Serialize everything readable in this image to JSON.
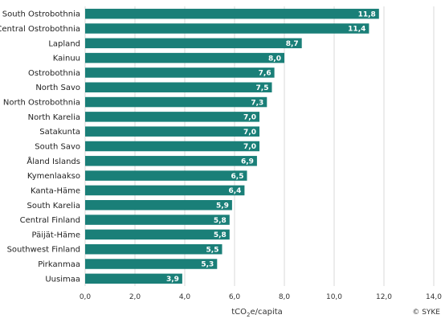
{
  "chart_data": {
    "type": "bar",
    "orientation": "horizontal",
    "categories": [
      "South Ostrobothnia",
      "Central Ostrobothnia",
      "Lapland",
      "Kainuu",
      "Ostrobothnia",
      "North Savo",
      "North Ostrobothnia",
      "North Karelia",
      "Satakunta",
      "South Savo",
      "Åland Islands",
      "Kymenlaakso",
      "Kanta-Häme",
      "South Karelia",
      "Central Finland",
      "Päijät-Häme",
      "Southwest Finland",
      "Pirkanmaa",
      "Uusimaa"
    ],
    "values": [
      11.8,
      11.4,
      8.7,
      8.0,
      7.6,
      7.5,
      7.3,
      7.0,
      7.0,
      7.0,
      6.9,
      6.5,
      6.4,
      5.9,
      5.8,
      5.8,
      5.5,
      5.3,
      3.9
    ],
    "value_labels": [
      "11,8",
      "11,4",
      "8,7",
      "8,0",
      "7,6",
      "7,5",
      "7,3",
      "7,0",
      "7,0",
      "7,0",
      "6,9",
      "6,5",
      "6,4",
      "5,9",
      "5,8",
      "5,8",
      "5,5",
      "5,3",
      "3,9"
    ],
    "xlim": [
      0,
      14
    ],
    "xticks": [
      0,
      2,
      4,
      6,
      8,
      10,
      12,
      14
    ],
    "xtick_labels": [
      "0,0",
      "2,0",
      "4,0",
      "6,0",
      "8,0",
      "10,0",
      "12,0",
      "14,0"
    ],
    "xlabel_parts": {
      "pre": "tCO",
      "sub": "2",
      "post": "e/capita"
    },
    "grid": "vertical",
    "legend": "none",
    "bar_color": "#1a7f78",
    "grid_color": "#d9d9d9"
  },
  "credit": "© SYKE"
}
